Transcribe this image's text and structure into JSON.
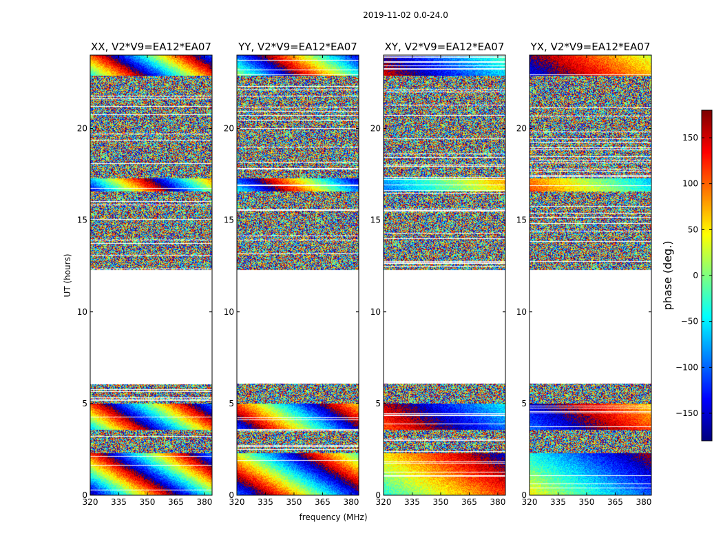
{
  "chart_data": {
    "type": "heatmap",
    "supertitle": "2019-11-02 0.0-24.0",
    "xlabel": "frequency (MHz)",
    "ylabel": "UT (hours)",
    "xlim": [
      320,
      384
    ],
    "ylim": [
      0,
      24
    ],
    "xticks": [
      320,
      335,
      350,
      365,
      380
    ],
    "yticks": [
      0,
      5,
      10,
      15,
      20
    ],
    "panels": [
      {
        "title": "XX, V2*V9=EA12*EA07",
        "polarization": "XX",
        "fringe_rate": 1.0,
        "fringe_phase": 0.0
      },
      {
        "title": "YY, V2*V9=EA12*EA07",
        "polarization": "YY",
        "fringe_rate": -0.8,
        "fringe_phase": 1.6
      },
      {
        "title": "XY, V2*V9=EA12*EA07",
        "polarization": "XY",
        "fringe_rate": 0.3,
        "fringe_phase": 2.5
      },
      {
        "title": "YX, V2*V9=EA12*EA07",
        "polarization": "YX",
        "fringe_rate": -0.3,
        "fringe_phase": 4.0
      }
    ],
    "data_gap_hours": [
      6.1,
      12.3
    ],
    "colorbar": {
      "label": "phase (deg.)",
      "vmin": -180,
      "vmax": 180,
      "ticks": [
        150,
        100,
        50,
        0,
        -50,
        -100,
        -150
      ],
      "tick_labels": [
        "150",
        "100",
        "50",
        "0",
        "−50",
        "−100",
        "−150"
      ],
      "colormap": "jet"
    }
  }
}
